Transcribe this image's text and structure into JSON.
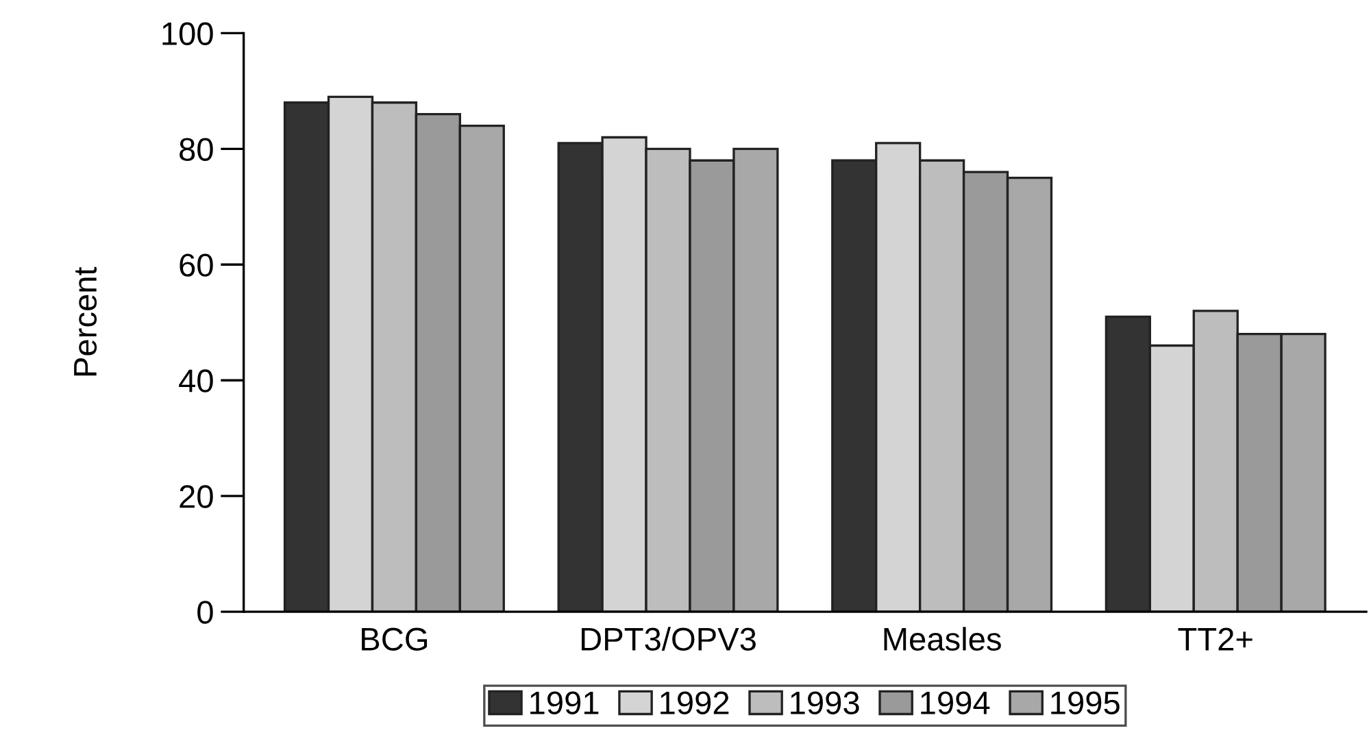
{
  "chart_data": {
    "type": "bar",
    "ylabel": "Percent",
    "categories": [
      "BCG",
      "DPT3/OPV3",
      "Measles",
      "TT2+"
    ],
    "series": [
      {
        "name": "1991",
        "color": "#333333",
        "values": [
          88,
          81,
          78,
          51
        ]
      },
      {
        "name": "1992",
        "color": "#d4d4d4",
        "values": [
          89,
          82,
          81,
          46
        ]
      },
      {
        "name": "1993",
        "color": "#bdbdbd",
        "values": [
          88,
          80,
          78,
          52
        ]
      },
      {
        "name": "1994",
        "color": "#9a9a9a",
        "values": [
          86,
          78,
          76,
          48
        ]
      },
      {
        "name": "1995",
        "color": "#a8a8a8",
        "values": [
          84,
          80,
          75,
          48
        ]
      }
    ],
    "ylim": [
      0,
      100
    ],
    "yticks": [
      0,
      20,
      40,
      60,
      80,
      100
    ],
    "grid": false,
    "legend": "bottom"
  }
}
